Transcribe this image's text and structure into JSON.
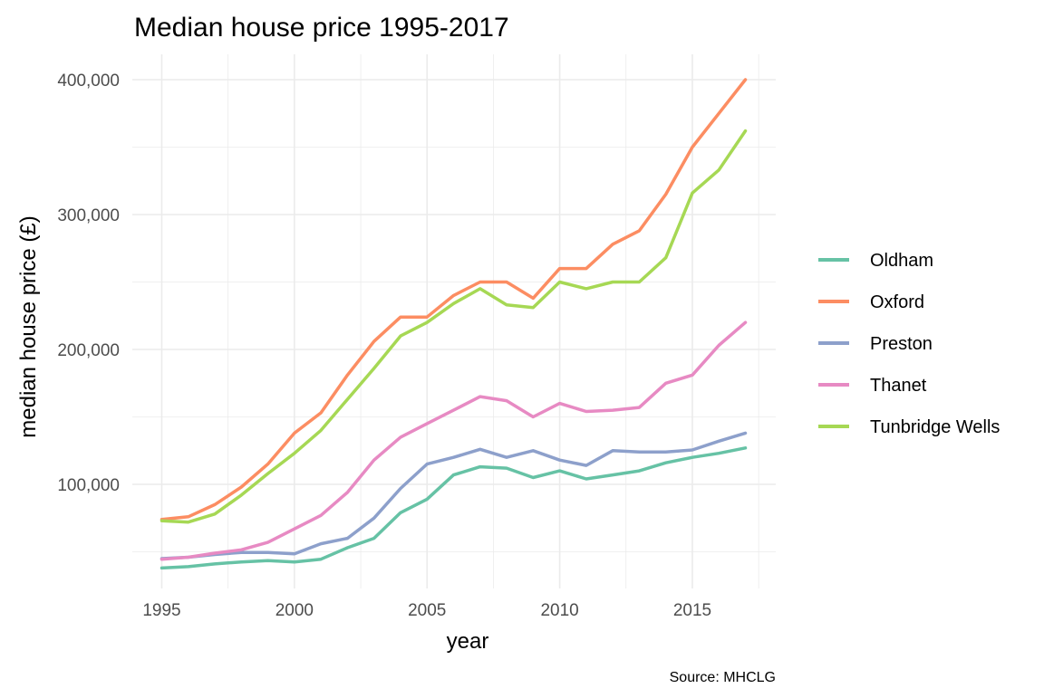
{
  "chart_data": {
    "type": "line",
    "title": "Median house price 1995-2017",
    "xlabel": "year",
    "ylabel": "median house price (£)",
    "caption": "Source: MHCLG",
    "xlim": [
      1995,
      2017
    ],
    "ylim": [
      25000,
      410000
    ],
    "x_ticks": [
      1995,
      2000,
      2005,
      2010,
      2015
    ],
    "x_tick_labels": [
      "1995",
      "2000",
      "2005",
      "2010",
      "2015"
    ],
    "y_ticks": [
      100000,
      200000,
      300000,
      400000
    ],
    "y_tick_labels": [
      "100,000",
      "200,000",
      "300,000",
      "400,000"
    ],
    "grid": true,
    "legend_position": "right",
    "x": [
      1995,
      1996,
      1997,
      1998,
      1999,
      2000,
      2001,
      2002,
      2003,
      2004,
      2005,
      2006,
      2007,
      2008,
      2009,
      2010,
      2011,
      2012,
      2013,
      2014,
      2015,
      2016,
      2017
    ],
    "series": [
      {
        "name": "Oldham",
        "color": "#66c2a5",
        "values": [
          38000,
          39000,
          41000,
          42500,
          43500,
          42500,
          44500,
          53000,
          60000,
          79000,
          89000,
          107000,
          113000,
          112000,
          105000,
          110000,
          104000,
          107000,
          110000,
          116000,
          120000,
          123000,
          127000
        ]
      },
      {
        "name": "Oxford",
        "color": "#fc8d62",
        "values": [
          74000,
          76000,
          85000,
          98000,
          115000,
          138000,
          153000,
          181000,
          206000,
          224000,
          224000,
          240000,
          250000,
          250000,
          238000,
          260000,
          260000,
          278000,
          288000,
          315000,
          350000,
          375000,
          400000
        ]
      },
      {
        "name": "Preston",
        "color": "#8da0cb",
        "values": [
          45000,
          46000,
          48000,
          49500,
          49500,
          48500,
          56000,
          60000,
          75000,
          97000,
          115000,
          120000,
          126000,
          120000,
          125000,
          118000,
          114000,
          125000,
          124000,
          124000,
          125500,
          132000,
          138000
        ]
      },
      {
        "name": "Thanet",
        "color": "#e78ac3",
        "values": [
          44500,
          46000,
          49000,
          51500,
          57000,
          67000,
          77000,
          94000,
          118000,
          135000,
          145000,
          155000,
          165000,
          162000,
          150000,
          160000,
          154000,
          155000,
          157000,
          175000,
          181000,
          203000,
          220000
        ]
      },
      {
        "name": "Tunbridge Wells",
        "color": "#a6d854",
        "values": [
          73000,
          72000,
          78000,
          92000,
          108000,
          123000,
          140000,
          163000,
          186000,
          210000,
          220000,
          234000,
          245000,
          233000,
          231000,
          250000,
          245000,
          250000,
          250000,
          268000,
          316000,
          333000,
          362000
        ]
      }
    ]
  }
}
